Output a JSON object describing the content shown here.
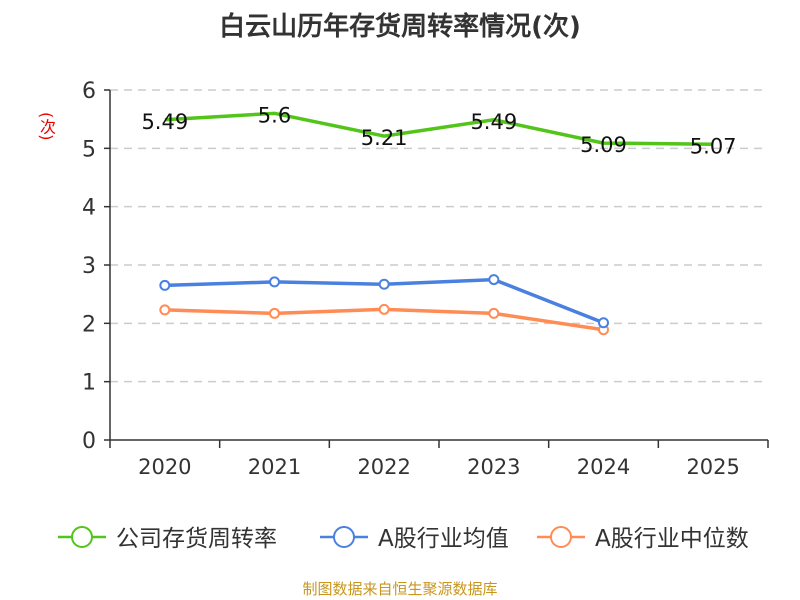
{
  "chart_data": {
    "type": "line",
    "title": "白云山历年存货周转率情况(次)",
    "ylabel": "(次)",
    "xlabel": "",
    "categories": [
      "2020",
      "2021",
      "2022",
      "2023",
      "2024",
      "2025"
    ],
    "ylim": [
      0,
      6
    ],
    "yticks": [
      "0",
      "1",
      "2",
      "3",
      "4",
      "5",
      "6"
    ],
    "grid": true,
    "legend_position": "bottom",
    "series": [
      {
        "name": "公司存货周转率",
        "color": "#52c41a",
        "values": [
          5.49,
          5.6,
          5.21,
          5.49,
          5.09,
          5.07
        ],
        "labels": [
          "5.49",
          "5.6",
          "5.21",
          "5.49",
          "5.09",
          "5.07"
        ]
      },
      {
        "name": "A股行业均值",
        "color": "#4a80e0",
        "values": [
          2.65,
          2.71,
          2.67,
          2.75,
          2.01,
          null
        ]
      },
      {
        "name": "A股行业中位数",
        "color": "#ff8c55",
        "values": [
          2.23,
          2.17,
          2.24,
          2.17,
          1.89,
          null
        ]
      }
    ],
    "source": "制图数据来自恒生聚源数据库"
  }
}
